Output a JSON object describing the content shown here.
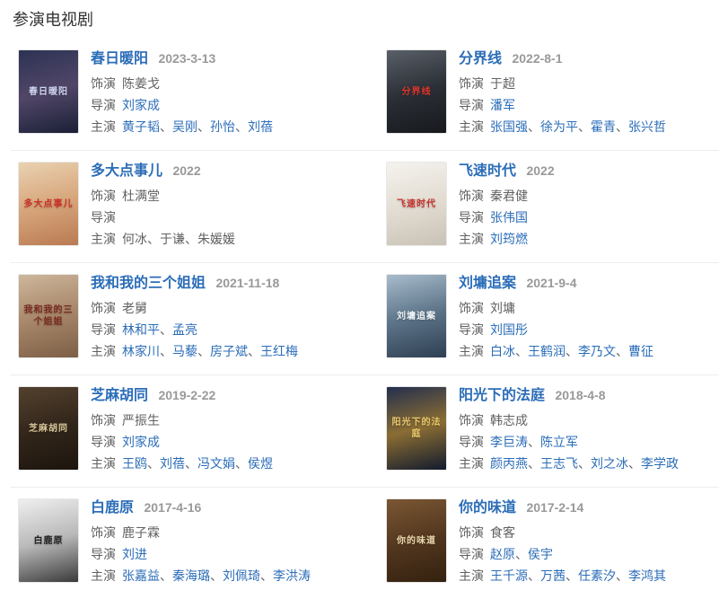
{
  "page": {
    "section_title": "参演电视剧"
  },
  "labels": {
    "role": "饰演",
    "director": "导演",
    "cast": "主演",
    "separator": "、"
  },
  "colors": {
    "link": "#2b6db8",
    "title_text": "#333333",
    "date_text": "#999999",
    "body_text": "#616161",
    "divider": "#ededed"
  },
  "entries": [
    {
      "title": "春日暖阳",
      "date": "2023-3-13",
      "role": "陈姜戈",
      "directors": [
        {
          "name": "刘家成",
          "link": true
        }
      ],
      "cast": [
        {
          "name": "黄子韬",
          "link": true
        },
        {
          "name": "吴刚",
          "link": true
        },
        {
          "name": "孙怡",
          "link": true
        },
        {
          "name": "刘蓓",
          "link": true
        }
      ],
      "poster": {
        "colors": [
          "#2c3354",
          "#514668",
          "#1a2036"
        ],
        "text": "春日暖阳",
        "text_color": "#cfd6f0"
      }
    },
    {
      "title": "分界线",
      "date": "2022-8-1",
      "role": "于超",
      "directors": [
        {
          "name": "潘军",
          "link": true
        }
      ],
      "cast": [
        {
          "name": "张国强",
          "link": true
        },
        {
          "name": "徐为平",
          "link": true
        },
        {
          "name": "霍青",
          "link": true
        },
        {
          "name": "张兴哲",
          "link": true
        }
      ],
      "poster": {
        "colors": [
          "#5a6068",
          "#2b2f36",
          "#17191d"
        ],
        "text": "分界线",
        "text_color": "#e0342c"
      }
    },
    {
      "title": "多大点事儿",
      "date": "2022",
      "role": "杜满堂",
      "directors": [],
      "cast": [
        {
          "name": "何冰",
          "link": false
        },
        {
          "name": "于谦",
          "link": false
        },
        {
          "name": "朱媛媛",
          "link": false
        }
      ],
      "poster": {
        "colors": [
          "#e9d2b2",
          "#d8a67c",
          "#b97a52"
        ],
        "text": "多大点事儿",
        "text_color": "#cc3126"
      }
    },
    {
      "title": "飞速时代",
      "date": "2022",
      "role": "秦君健",
      "directors": [
        {
          "name": "张伟国",
          "link": true
        }
      ],
      "cast": [
        {
          "name": "刘筠燃",
          "link": true
        }
      ],
      "poster": {
        "colors": [
          "#f5f3ef",
          "#e3ddd3",
          "#c9c2b6"
        ],
        "text": "飞速时代",
        "text_color": "#c8322b"
      }
    },
    {
      "title": "我和我的三个姐姐",
      "date": "2021-11-18",
      "role": "老舅",
      "directors": [
        {
          "name": "林和平",
          "link": true
        },
        {
          "name": "孟亮",
          "link": true
        }
      ],
      "cast": [
        {
          "name": "林家川",
          "link": true
        },
        {
          "name": "马藜",
          "link": true
        },
        {
          "name": "房子斌",
          "link": true
        },
        {
          "name": "王红梅",
          "link": true
        }
      ],
      "poster": {
        "colors": [
          "#cdb79c",
          "#a8876a",
          "#7c5f46"
        ],
        "text": "我和我的三个姐姐",
        "text_color": "#7a2a20"
      }
    },
    {
      "title": "刘墉追案",
      "date": "2021-9-4",
      "role": "刘墉",
      "directors": [
        {
          "name": "刘国彤",
          "link": true
        }
      ],
      "cast": [
        {
          "name": "白冰",
          "link": true
        },
        {
          "name": "王鹤润",
          "link": true
        },
        {
          "name": "李乃文",
          "link": true
        },
        {
          "name": "曹征",
          "link": true
        }
      ],
      "poster": {
        "colors": [
          "#a8bccb",
          "#5d7489",
          "#2e3f52"
        ],
        "text": "刘墉追案",
        "text_color": "#f0f4f8"
      }
    },
    {
      "title": "芝麻胡同",
      "date": "2019-2-22",
      "role": "严振生",
      "directors": [
        {
          "name": "刘家成",
          "link": true
        }
      ],
      "cast": [
        {
          "name": "王鸥",
          "link": true
        },
        {
          "name": "刘蓓",
          "link": true
        },
        {
          "name": "冯文娟",
          "link": true
        },
        {
          "name": "侯煜",
          "link": true
        }
      ],
      "poster": {
        "colors": [
          "#54412e",
          "#32261a",
          "#1c150e"
        ],
        "text": "芝麻胡同",
        "text_color": "#d9c79b"
      }
    },
    {
      "title": "阳光下的法庭",
      "date": "2018-4-8",
      "role": "韩志成",
      "directors": [
        {
          "name": "李巨涛",
          "link": true
        },
        {
          "name": "陈立军",
          "link": true
        }
      ],
      "cast": [
        {
          "name": "颜丙燕",
          "link": true
        },
        {
          "name": "王志飞",
          "link": true
        },
        {
          "name": "刘之冰",
          "link": true
        },
        {
          "name": "李学政",
          "link": true
        }
      ],
      "poster": {
        "colors": [
          "#232f4e",
          "#8a6d33",
          "#121a2e"
        ],
        "text": "阳光下的法庭",
        "text_color": "#e8c76a"
      }
    },
    {
      "title": "白鹿原",
      "date": "2017-4-16",
      "role": "鹿子霖",
      "directors": [
        {
          "name": "刘进",
          "link": true
        }
      ],
      "cast": [
        {
          "name": "张嘉益",
          "link": true
        },
        {
          "name": "秦海璐",
          "link": true
        },
        {
          "name": "刘佩琦",
          "link": true
        },
        {
          "name": "李洪涛",
          "link": true
        }
      ],
      "poster": {
        "colors": [
          "#efefef",
          "#b9b9b9",
          "#3a3a3a"
        ],
        "text": "白鹿原",
        "text_color": "#222222"
      }
    },
    {
      "title": "你的味道",
      "date": "2017-2-14",
      "role": "食客",
      "directors": [
        {
          "name": "赵原",
          "link": true
        },
        {
          "name": "侯宇",
          "link": true
        }
      ],
      "cast": [
        {
          "name": "王千源",
          "link": true
        },
        {
          "name": "万茜",
          "link": true
        },
        {
          "name": "任素汐",
          "link": true
        },
        {
          "name": "李鸿其",
          "link": true
        }
      ],
      "poster": {
        "colors": [
          "#7a5733",
          "#53371f",
          "#33210f"
        ],
        "text": "你的味道",
        "text_color": "#ead9ad"
      }
    }
  ]
}
